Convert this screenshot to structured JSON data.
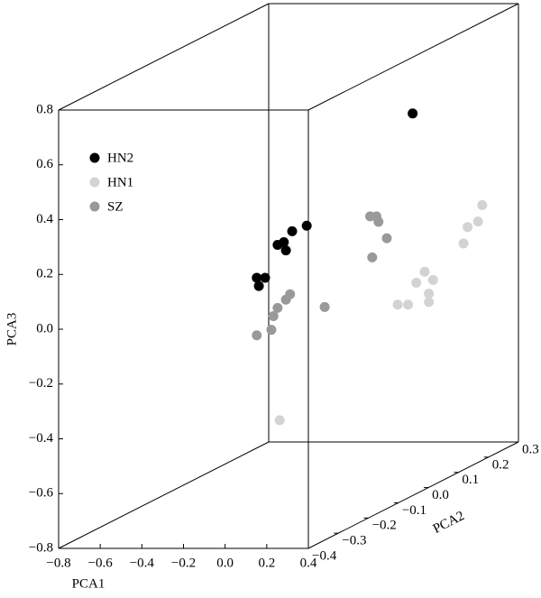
{
  "chart_data": {
    "type": "scatter3d",
    "xlabel": "PCA1",
    "ylabel": "PCA2",
    "zlabel": "PCA3",
    "xlim": [
      -0.8,
      0.4
    ],
    "ylim": [
      -0.4,
      0.3
    ],
    "zlim": [
      -0.8,
      0.8
    ],
    "xticks": [
      {
        "value": -0.8,
        "label": "−0.8"
      },
      {
        "value": -0.6,
        "label": "−0.6"
      },
      {
        "value": -0.4,
        "label": "−0.4"
      },
      {
        "value": -0.2,
        "label": "−0.2"
      },
      {
        "value": 0,
        "label": "0.0"
      },
      0.2,
      0.4
    ],
    "yticks": [
      {
        "value": -0.4,
        "label": "−0.4"
      },
      {
        "value": -0.3,
        "label": "−0.3"
      },
      {
        "value": -0.2,
        "label": "−0.2"
      },
      {
        "value": -0.1,
        "label": "−0.1"
      },
      {
        "value": 0,
        "label": "0.0"
      },
      0.1,
      0.2,
      0.3
    ],
    "zticks": [
      {
        "value": -0.8,
        "label": "−0.8"
      },
      {
        "value": -0.6,
        "label": "−0.6"
      },
      {
        "value": -0.4,
        "label": "−0.4"
      },
      {
        "value": -0.2,
        "label": "−0.2"
      },
      {
        "value": 0,
        "label": "0.0"
      },
      0.2,
      0.4,
      0.6,
      0.8
    ],
    "legend": "upper left",
    "series": [
      {
        "name": "HN2",
        "color": "#000000",
        "x": [
          0.08,
          0.09,
          0.12,
          0.18,
          0.21,
          0.22,
          0.25,
          0.32,
          0.18
        ],
        "y": [
          -0.35,
          -0.35,
          -0.35,
          -0.35,
          -0.35,
          -0.35,
          -0.35,
          -0.35,
          0.1
        ],
        "z": [
          0.16,
          0.13,
          0.16,
          0.28,
          0.29,
          0.26,
          0.33,
          0.35,
          0.51
        ]
      },
      {
        "name": "HN1",
        "color": "#d3d3d3",
        "x": [
          0.19,
          0.18,
          0.23,
          0.27,
          0.31,
          0.33,
          0.33,
          0.35,
          0.28,
          0.3,
          0.35,
          0.37
        ],
        "y": [
          -0.35,
          0.05,
          0.05,
          0.05,
          0.05,
          0.05,
          0.05,
          0.05,
          0.2,
          0.2,
          0.2,
          0.2
        ],
        "z": [
          -0.36,
          -0.16,
          -0.16,
          -0.08,
          -0.04,
          -0.12,
          -0.15,
          -0.07,
          -0.02,
          0.04,
          0.06,
          0.12
        ]
      },
      {
        "name": "SZ",
        "color": "#999999",
        "x": [
          0.08,
          0.15,
          0.16,
          0.18,
          0.22,
          0.24,
          0.19,
          0.12,
          0.15,
          0.16,
          0.2,
          0.13
        ],
        "y": [
          -0.35,
          -0.35,
          -0.35,
          -0.35,
          -0.35,
          -0.35,
          -0.2,
          0,
          0,
          0,
          0,
          0
        ],
        "z": [
          -0.05,
          -0.03,
          0.02,
          0.05,
          0.08,
          0.1,
          -0.03,
          0.19,
          0.19,
          0.17,
          0.11,
          0.04
        ]
      }
    ]
  }
}
